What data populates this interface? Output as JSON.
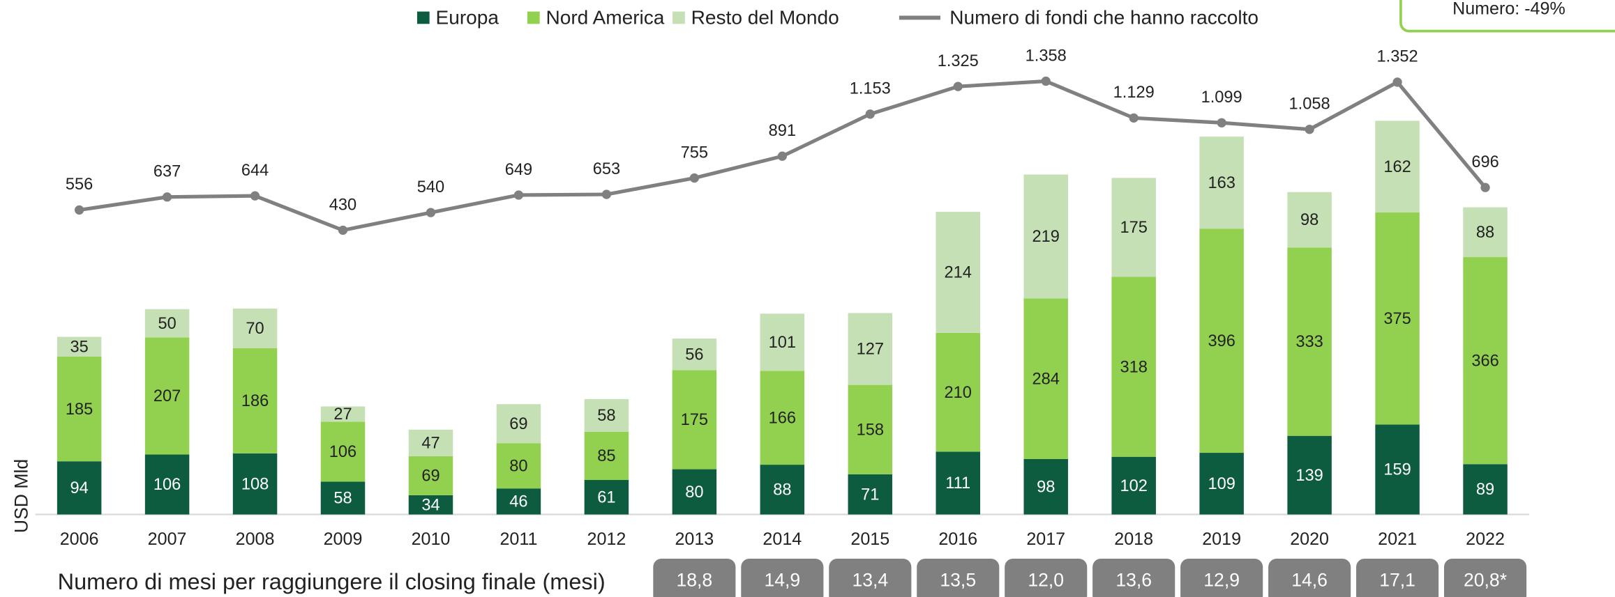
{
  "chart_data": {
    "type": "bar",
    "stacked": true,
    "ylabel": "USD Mld",
    "categories": [
      "2006",
      "2007",
      "2008",
      "2009",
      "2010",
      "2011",
      "2012",
      "2013",
      "2014",
      "2015",
      "2016",
      "2017",
      "2018",
      "2019",
      "2020",
      "2021",
      "2022"
    ],
    "ylim": [
      0,
      900
    ],
    "y2lim": [
      -1340,
      1830
    ],
    "series": [
      {
        "name": "Europa",
        "color": "#0d5c3f",
        "values": [
          94,
          106,
          108,
          58,
          34,
          46,
          61,
          80,
          88,
          71,
          111,
          98,
          102,
          109,
          139,
          159,
          89
        ]
      },
      {
        "name": "Nord America",
        "color": "#92d050",
        "values": [
          185,
          207,
          186,
          106,
          69,
          80,
          85,
          175,
          166,
          158,
          210,
          284,
          318,
          396,
          333,
          375,
          366
        ]
      },
      {
        "name": "Resto del Mondo",
        "color": "#c5e0b4",
        "values": [
          35,
          50,
          70,
          27,
          47,
          69,
          58,
          56,
          101,
          127,
          214,
          219,
          175,
          163,
          98,
          162,
          88
        ]
      },
      {
        "name": "Numero di fondi che hanno raccolto",
        "type": "line",
        "axis": "y2",
        "color": "#808080",
        "values": [
          556,
          637,
          644,
          430,
          540,
          649,
          653,
          755,
          891,
          1153,
          1325,
          1358,
          1129,
          1099,
          1058,
          1352,
          696
        ],
        "value_labels": [
          "556",
          "637",
          "644",
          "430",
          "540",
          "649",
          "653",
          "755",
          "891",
          "1.153",
          "1.325",
          "1.358",
          "1.129",
          "1.099",
          "1.058",
          "1.352",
          "696"
        ]
      }
    ],
    "months": {
      "label": "Numero di mesi per raggiungere il closing finale (mesi)",
      "values": [
        null,
        null,
        null,
        null,
        null,
        null,
        null,
        18.8,
        14.9,
        13.4,
        13.5,
        12.0,
        13.6,
        12.9,
        14.6,
        17.1,
        20.8
      ],
      "value_labels": [
        null,
        null,
        null,
        null,
        null,
        null,
        null,
        "18,8",
        "14,9",
        "13,4",
        "13,5",
        "12,0",
        "13,6",
        "12,9",
        "14,6",
        "17,1",
        "20,8*"
      ]
    },
    "annotation": "Numero: -49%"
  }
}
